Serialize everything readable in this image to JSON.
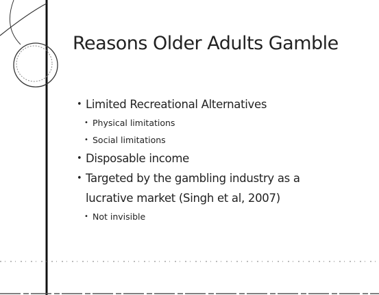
{
  "slide": {
    "title": "Reasons Older Adults Gamble",
    "bullets": [
      {
        "text": "Limited Recreational Alternatives",
        "sub": [
          "Physical limitations",
          "Social limitations"
        ]
      },
      {
        "text": "Disposable income",
        "sub": []
      },
      {
        "text": "Targeted by the gambling industry as a lucrative market (Singh et al, 2007)",
        "sub": [
          "Not invisible"
        ]
      }
    ]
  }
}
